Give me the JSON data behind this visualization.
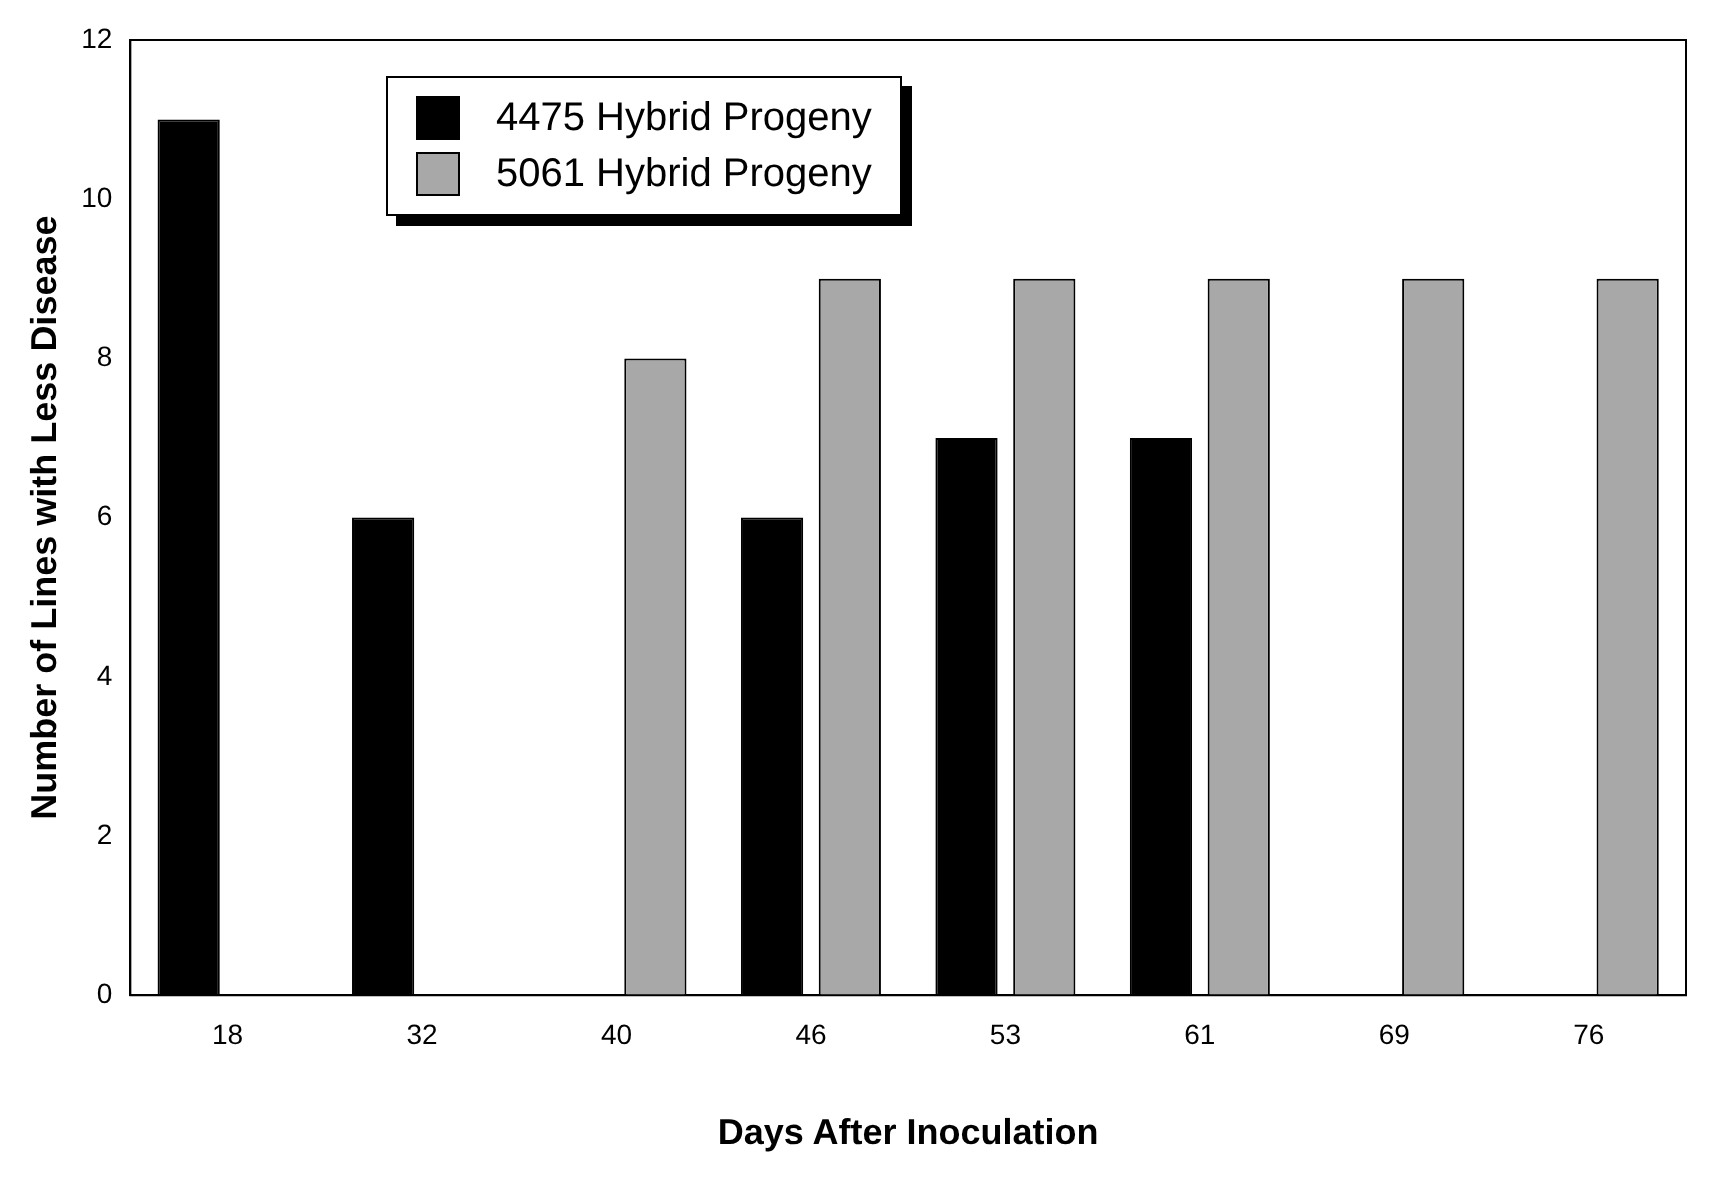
{
  "chart_data": {
    "type": "bar",
    "xlabel": "Days After Inoculation",
    "ylabel": "Number of Lines with Less Disease",
    "categories": [
      "18",
      "32",
      "40",
      "46",
      "53",
      "61",
      "69",
      "76"
    ],
    "series": [
      {
        "name": "4475 Hybrid Progeny",
        "color": "#000000",
        "values": [
          11,
          6,
          null,
          6,
          7,
          7,
          null,
          null
        ]
      },
      {
        "name": "5061 Hybrid Progeny",
        "color": "#a8a8a8",
        "values": [
          null,
          null,
          8,
          9,
          9,
          9,
          9,
          9
        ]
      }
    ],
    "ylim": [
      0,
      12
    ],
    "yticks": [
      0,
      2,
      4,
      6,
      8,
      10,
      12
    ],
    "grid": false,
    "legend": "top left"
  }
}
